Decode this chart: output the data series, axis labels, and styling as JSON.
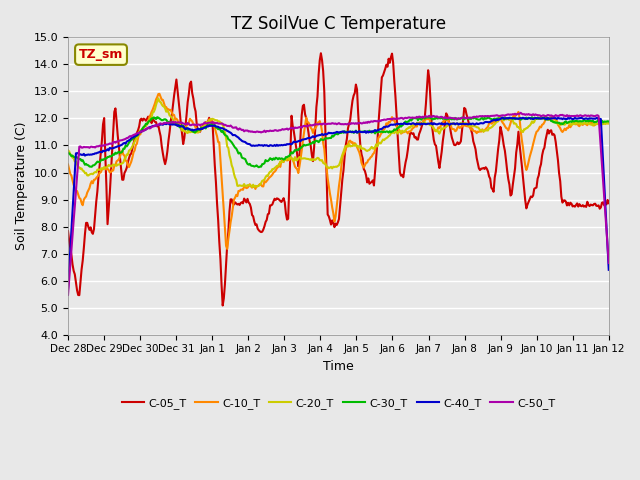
{
  "title": "TZ SoilVue C Temperature",
  "ylabel": "Soil Temperature (C)",
  "xlabel": "Time",
  "annotation": "TZ_sm",
  "ylim": [
    4.0,
    15.0
  ],
  "yticks": [
    4.0,
    5.0,
    6.0,
    7.0,
    8.0,
    9.0,
    10.0,
    11.0,
    12.0,
    13.0,
    14.0,
    15.0
  ],
  "xtick_labels": [
    "Dec 28",
    "Dec 29",
    "Dec 30",
    "Dec 31",
    "Jan 1",
    "Jan 2",
    "Jan 3",
    "Jan 4",
    "Jan 5",
    "Jan 6",
    "Jan 7",
    "Jan 8",
    "Jan 9",
    "Jan 10",
    "Jan 11",
    "Jan 12"
  ],
  "colors": {
    "C-05_T": "#cc0000",
    "C-10_T": "#ff8800",
    "C-20_T": "#cccc00",
    "C-30_T": "#00bb00",
    "C-40_T": "#0000cc",
    "C-50_T": "#aa00aa"
  },
  "plot_bg_color": "#e8e8e8",
  "grid_color": "#ffffff",
  "linewidth": 1.5,
  "n_points": 480,
  "days": 15
}
